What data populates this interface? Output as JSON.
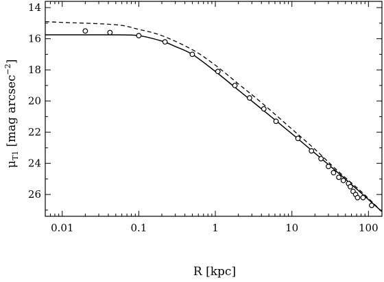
{
  "chart_data": {
    "type": "line",
    "xlabel": "R [kpc]",
    "ylabel": {
      "prefix": "μ",
      "sub": "T1",
      "rest": " [mag arcsec",
      "sup": "−2",
      "close": "]"
    },
    "x_scale": "log",
    "y_inverted": true,
    "xlim": [
      0.006,
      150
    ],
    "ylim": [
      27.4,
      13.6
    ],
    "x_ticks": [
      0.01,
      0.1,
      1,
      10,
      100
    ],
    "x_tick_labels": [
      "0.01",
      "0.1",
      "1",
      "10",
      "100"
    ],
    "y_ticks": [
      14,
      16,
      18,
      20,
      22,
      24,
      26
    ],
    "y_tick_labels": [
      "14",
      "16",
      "18",
      "20",
      "22",
      "24",
      "26"
    ],
    "grid": false,
    "series": [
      {
        "style": "markers-open-circle",
        "x": [
          0.02,
          0.042,
          0.1,
          0.22,
          0.5,
          1.08,
          1.8,
          2.8,
          4.3,
          6.2,
          12,
          18,
          24,
          30,
          35,
          41,
          47,
          55,
          58,
          63,
          68,
          72,
          85,
          110
        ],
        "y": [
          15.5,
          15.6,
          15.8,
          16.2,
          17.0,
          18.1,
          19.0,
          19.8,
          20.5,
          21.3,
          22.4,
          23.2,
          23.7,
          24.2,
          24.6,
          24.9,
          25.1,
          25.3,
          25.5,
          25.8,
          26.0,
          26.2,
          26.2,
          26.7
        ]
      },
      {
        "style": "solid-line",
        "x": [
          0.006,
          0.01,
          0.05,
          0.1,
          0.2,
          0.3,
          0.5,
          1,
          2,
          4,
          10,
          20,
          40,
          80,
          150
        ],
        "y": [
          15.75,
          15.75,
          15.75,
          15.8,
          16.15,
          16.5,
          17.0,
          18.1,
          19.3,
          20.5,
          22.1,
          23.35,
          24.6,
          25.9,
          27.1
        ]
      },
      {
        "style": "dashed-line",
        "x": [
          0.006,
          0.01,
          0.05,
          0.1,
          0.2,
          0.5,
          1,
          2,
          4,
          10,
          20,
          40,
          80,
          130
        ],
        "y": [
          14.9,
          14.95,
          15.1,
          15.4,
          15.8,
          16.7,
          17.7,
          18.9,
          20.1,
          21.8,
          23.1,
          24.5,
          25.8,
          26.8
        ]
      }
    ]
  }
}
